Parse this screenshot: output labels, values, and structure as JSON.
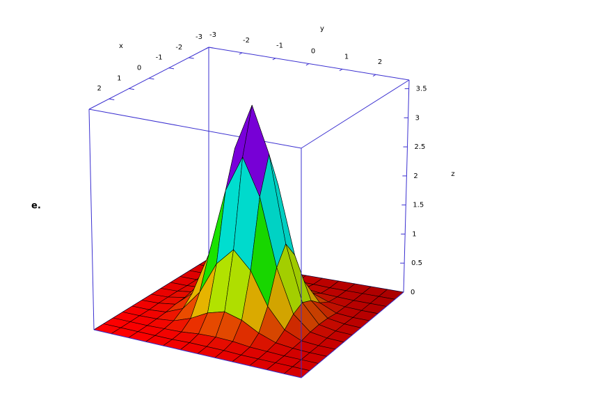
{
  "chart_data": {
    "type": "surface",
    "panel_label": "e.",
    "x_label": "x",
    "y_label": "y",
    "z_label": "z",
    "x": [
      -3,
      -2.5,
      -2,
      -1.5,
      -1,
      -0.5,
      0,
      0.5,
      1,
      1.5,
      2,
      2.5,
      3
    ],
    "y": [
      -3,
      -2.5,
      -2,
      -1.5,
      -1,
      -0.5,
      0,
      0.5,
      1,
      1.5,
      2,
      2.5,
      3
    ],
    "z": [
      [
        0,
        0,
        0,
        0,
        0,
        0,
        0,
        0,
        0,
        0,
        0,
        0,
        0
      ],
      [
        0,
        0,
        0,
        0,
        0,
        0.01,
        0.01,
        0.01,
        0,
        0,
        0,
        0,
        0
      ],
      [
        0,
        0,
        0,
        0.01,
        0.02,
        0.05,
        0.06,
        0.05,
        0.02,
        0.01,
        0,
        0,
        0
      ],
      [
        0,
        0,
        0.01,
        0.04,
        0.14,
        0.29,
        0.37,
        0.29,
        0.14,
        0.04,
        0.01,
        0,
        0
      ],
      [
        0,
        0,
        0.02,
        0.14,
        0.47,
        1.0,
        1.29,
        1.0,
        0.47,
        0.14,
        0.02,
        0,
        0
      ],
      [
        0,
        0.01,
        0.05,
        0.29,
        1.0,
        2.12,
        2.73,
        2.12,
        1.0,
        0.29,
        0.05,
        0.01,
        0
      ],
      [
        0,
        0.01,
        0.06,
        0.37,
        1.29,
        2.73,
        3.5,
        2.73,
        1.29,
        0.37,
        0.06,
        0.01,
        0
      ],
      [
        0,
        0.01,
        0.05,
        0.29,
        1.0,
        2.12,
        2.73,
        2.12,
        1.0,
        0.29,
        0.05,
        0.01,
        0
      ],
      [
        0,
        0,
        0.02,
        0.14,
        0.47,
        1.0,
        1.29,
        1.0,
        0.47,
        0.14,
        0.02,
        0,
        0
      ],
      [
        0,
        0,
        0.01,
        0.04,
        0.14,
        0.29,
        0.37,
        0.29,
        0.14,
        0.04,
        0.01,
        0,
        0
      ],
      [
        0,
        0,
        0,
        0.01,
        0.02,
        0.05,
        0.06,
        0.05,
        0.02,
        0.01,
        0,
        0,
        0
      ],
      [
        0,
        0,
        0,
        0,
        0,
        0.01,
        0.01,
        0.01,
        0,
        0,
        0,
        0,
        0
      ],
      [
        0,
        0,
        0,
        0,
        0,
        0,
        0,
        0,
        0,
        0,
        0,
        0,
        0
      ]
    ],
    "xlim": [
      -3,
      3
    ],
    "ylim": [
      -3,
      3
    ],
    "zlim": [
      0,
      3.65
    ],
    "xticks": [
      -3,
      -2,
      -1,
      0,
      1,
      2
    ],
    "yticks": [
      -3,
      -2,
      -1,
      0,
      1,
      2
    ],
    "zticks": [
      0,
      0.5,
      1,
      1.5,
      2,
      2.5,
      3,
      3.5
    ],
    "colormap": "hsv",
    "box_color": "#3a2fd0"
  }
}
